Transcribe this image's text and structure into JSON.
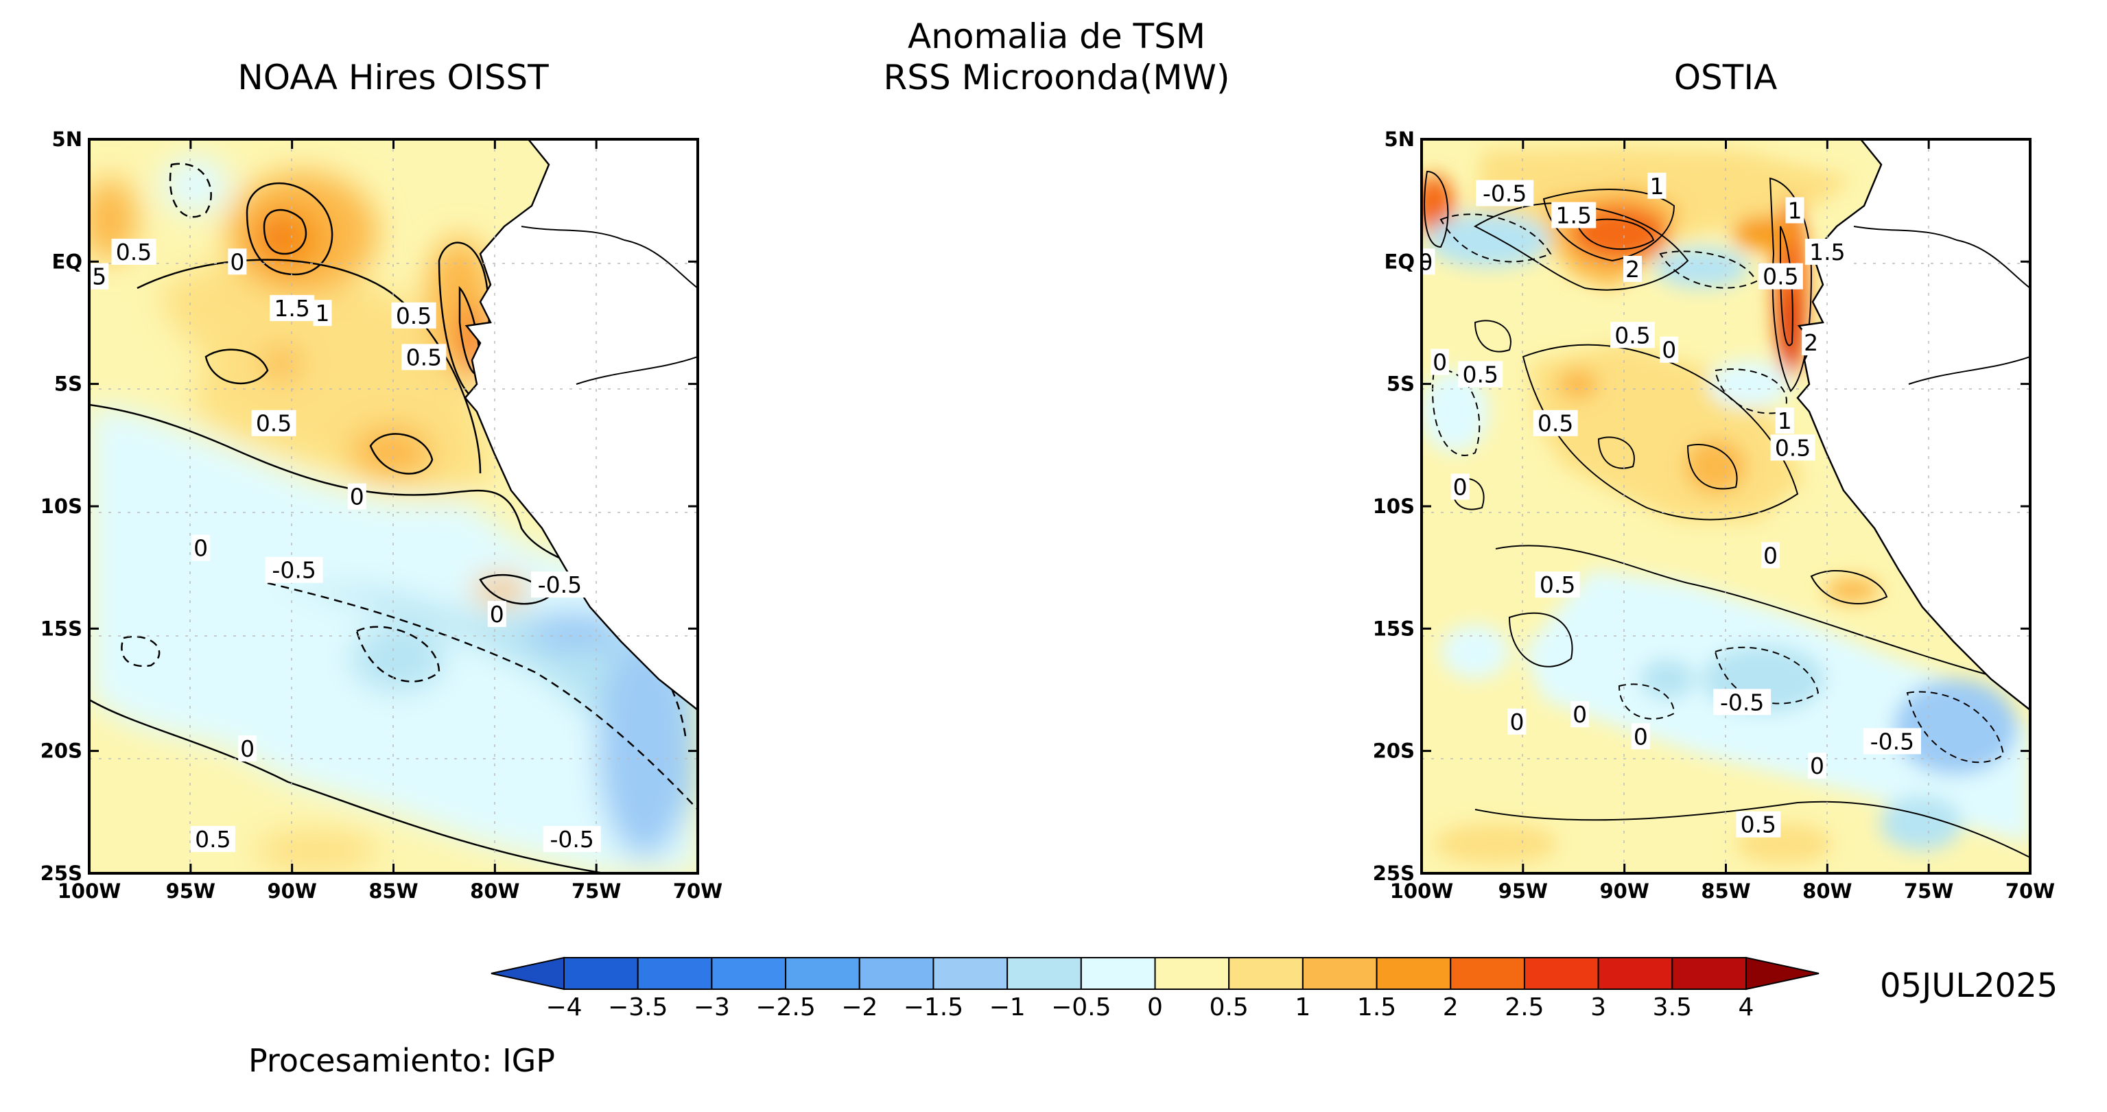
{
  "header": {
    "main_title_line1": "Anomalia de TSM",
    "main_title_line2": "RSS Microonda(MW)"
  },
  "panels": [
    {
      "title": "NOAA Hires OISST",
      "y_ticks": [
        "5N",
        "EQ",
        "5S",
        "10S",
        "15S",
        "20S",
        "25S"
      ],
      "x_ticks": [
        "100W",
        "95W",
        "90W",
        "85W",
        "80W",
        "75W",
        "70W"
      ],
      "contour_labels": [
        {
          "text": "0.5",
          "lon": -97.8,
          "lat": 0.4
        },
        {
          "text": "0",
          "lon": -92.7,
          "lat": 0.0
        },
        {
          "text": "5",
          "lon": -99.5,
          "lat": -0.6
        },
        {
          "text": "1.5",
          "lon": -90.0,
          "lat": -1.9
        },
        {
          "text": "1",
          "lon": -88.5,
          "lat": -2.1
        },
        {
          "text": "0.5",
          "lon": -84.0,
          "lat": -2.2
        },
        {
          "text": "0.5",
          "lon": -83.5,
          "lat": -3.9
        },
        {
          "text": "0.5",
          "lon": -90.9,
          "lat": -6.6
        },
        {
          "text": "0",
          "lon": -86.8,
          "lat": -9.6
        },
        {
          "text": "0",
          "lon": -94.5,
          "lat": -11.7
        },
        {
          "text": "-0.5",
          "lon": -89.9,
          "lat": -12.6
        },
        {
          "text": "-0.5",
          "lon": -76.8,
          "lat": -13.2
        },
        {
          "text": "0",
          "lon": -79.9,
          "lat": -14.4
        },
        {
          "text": "0",
          "lon": -92.2,
          "lat": -19.9
        },
        {
          "text": "0.5",
          "lon": -93.9,
          "lat": -23.6
        },
        {
          "text": "-0.5",
          "lon": -76.2,
          "lat": -23.6
        }
      ]
    },
    {
      "title": "OSTIA",
      "y_ticks": [
        "5N",
        "EQ",
        "5S",
        "10S",
        "15S",
        "20S",
        "25S"
      ],
      "x_ticks": [
        "100W",
        "95W",
        "90W",
        "85W",
        "80W",
        "75W",
        "70W"
      ],
      "contour_labels": [
        {
          "text": "-0.5",
          "lon": -95.9,
          "lat": 2.8
        },
        {
          "text": "1",
          "lon": -88.4,
          "lat": 3.1
        },
        {
          "text": "1.5",
          "lon": -92.5,
          "lat": 1.9
        },
        {
          "text": "1",
          "lon": -81.6,
          "lat": 2.1
        },
        {
          "text": "1.5",
          "lon": -80.0,
          "lat": 0.4
        },
        {
          "text": "0",
          "lon": -99.8,
          "lat": 0.0
        },
        {
          "text": "2",
          "lon": -89.6,
          "lat": -0.3
        },
        {
          "text": "0.5",
          "lon": -82.3,
          "lat": -0.6
        },
        {
          "text": "0.5",
          "lon": -89.6,
          "lat": -3.0
        },
        {
          "text": "0",
          "lon": -87.8,
          "lat": -3.6
        },
        {
          "text": "2",
          "lon": -80.8,
          "lat": -3.3
        },
        {
          "text": "0",
          "lon": -99.1,
          "lat": -4.1
        },
        {
          "text": "0.5",
          "lon": -97.1,
          "lat": -4.6
        },
        {
          "text": "0.5",
          "lon": -93.4,
          "lat": -6.6
        },
        {
          "text": "1",
          "lon": -82.1,
          "lat": -6.5
        },
        {
          "text": "0.5",
          "lon": -81.7,
          "lat": -7.6
        },
        {
          "text": "0",
          "lon": -98.1,
          "lat": -9.2
        },
        {
          "text": "0",
          "lon": -82.8,
          "lat": -12.0
        },
        {
          "text": "0.5",
          "lon": -93.3,
          "lat": -13.2
        },
        {
          "text": "-0.5",
          "lon": -84.2,
          "lat": -18.0
        },
        {
          "text": "0",
          "lon": -95.3,
          "lat": -18.8
        },
        {
          "text": "0",
          "lon": -92.2,
          "lat": -18.5
        },
        {
          "text": "0",
          "lon": -89.2,
          "lat": -19.4
        },
        {
          "text": "-0.5",
          "lon": -76.8,
          "lat": -19.6
        },
        {
          "text": "0",
          "lon": -80.5,
          "lat": -20.6
        },
        {
          "text": "0.5",
          "lon": -83.4,
          "lat": -23.0
        }
      ]
    }
  ],
  "colorbar": {
    "labels": [
      "−4",
      "−3.5",
      "−3",
      "−2.5",
      "−2",
      "−1.5",
      "−1",
      "−0.5",
      "0",
      "0.5",
      "1",
      "1.5",
      "2",
      "2.5",
      "3",
      "3.5",
      "4"
    ],
    "colors": [
      "#1f5fd6",
      "#2f78e8",
      "#3f8ef0",
      "#58a2f2",
      "#7ab6f4",
      "#9ccbf5",
      "#b6e4f3",
      "#e0fbff",
      "#fdf6b0",
      "#fde082",
      "#fcb94b",
      "#f89b1e",
      "#f46a12",
      "#ee3a10",
      "#d91c10",
      "#b80c0c"
    ],
    "left_arrow_color": "#1a4fc4",
    "right_arrow_color": "#8b0000"
  },
  "date_label": "05JUL2025",
  "credit": "Procesamiento: IGP"
}
